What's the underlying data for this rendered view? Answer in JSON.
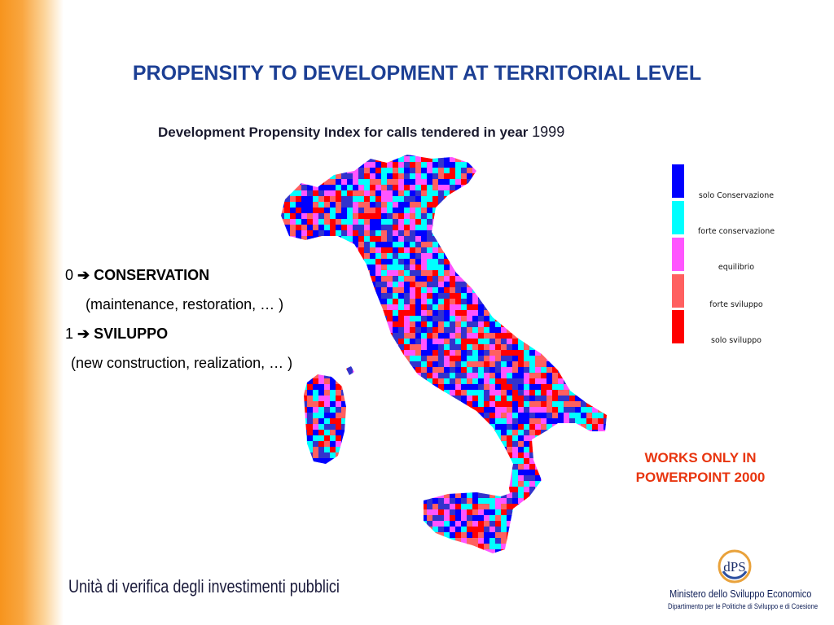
{
  "slide": {
    "title": "PROPENSITY TO DEVELOPMENT AT TERRITORIAL LEVEL",
    "subtitle_text": "Development Propensity Index for calls tendered in year ",
    "subtitle_year": "1999"
  },
  "scale": {
    "line1_value": "0",
    "line1_arrow": "➔",
    "line1_label": "CONSERVATION",
    "line2": "(maintenance, restoration, … )",
    "line3_value": "1",
    "line3_arrow": "➔",
    "line3_label": "SVILUPPO",
    "line4": "(new construction, realization, … )"
  },
  "legend": {
    "items": [
      {
        "label": "solo Conservazione",
        "color": "#0000ff"
      },
      {
        "label": "forte conservazione",
        "color": "#00ffff"
      },
      {
        "label": "equilibrio",
        "color": "#ff55ff"
      },
      {
        "label": "forte sviluppo",
        "color": "#ff6060"
      },
      {
        "label": "solo sviluppo",
        "color": "#ff0000"
      }
    ]
  },
  "notice": {
    "line1": "WORKS ONLY IN",
    "line2": "POWERPOINT 2000"
  },
  "footer": {
    "left": "Unità di verifica degli investimenti pubblici",
    "logo_text": "dPS",
    "ministry": "Ministero dello Sviluppo Economico",
    "department": "Dipartimento per le Politiche di Sviluppo e di Coesione"
  },
  "map_colors": [
    "#0000ff",
    "#00ffff",
    "#ff55ff",
    "#ff6060",
    "#ff0000",
    "#3333cc"
  ]
}
